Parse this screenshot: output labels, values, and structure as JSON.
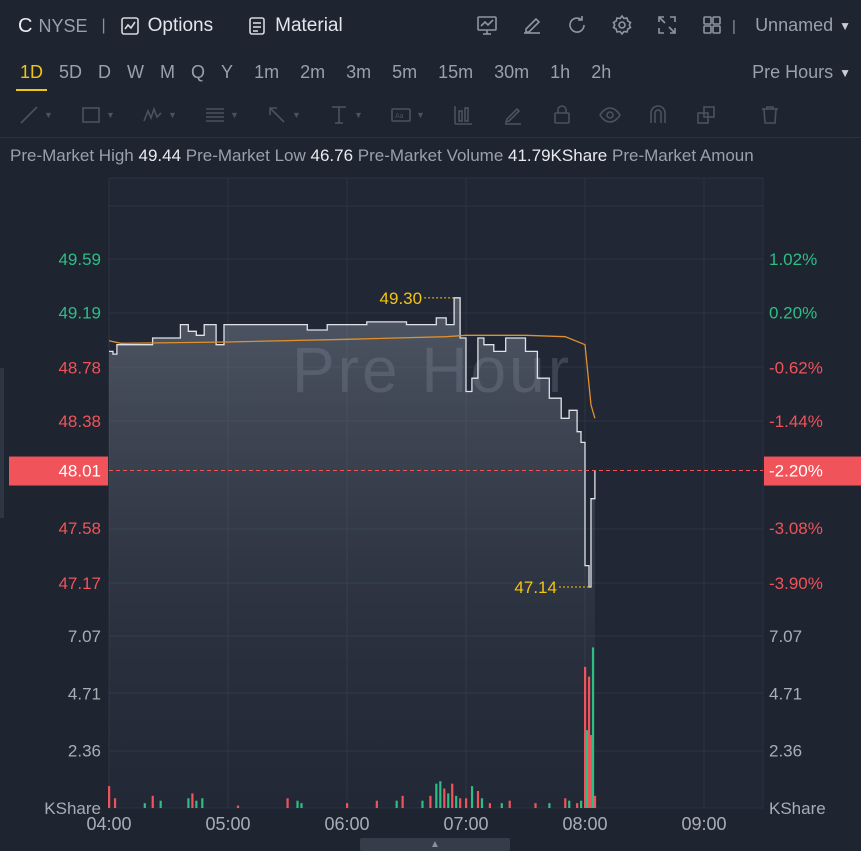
{
  "header": {
    "ticker": "C",
    "exchange": "NYSE",
    "options_label": "Options",
    "material_label": "Material",
    "layout_name": "Unnamed",
    "icons": [
      "chart-screen-icon",
      "edit-icon",
      "refresh-icon",
      "gear-icon",
      "fullscreen-icon",
      "grid-icon"
    ]
  },
  "intervals": {
    "items": [
      "1D",
      "5D",
      "D",
      "W",
      "M",
      "Q",
      "Y",
      "1m",
      "2m",
      "3m",
      "5m",
      "15m",
      "30m",
      "1h",
      "2h"
    ],
    "active": "1D",
    "session": "Pre Hours"
  },
  "tools": [
    "line-tool-icon",
    "rectangle-tool-icon",
    "pattern-tool-icon",
    "fib-tool-icon",
    "arrow-tool-icon",
    "text-tool-icon",
    "annotation-tool-icon",
    "bar-tool-icon",
    "pen-icon",
    "lock-icon",
    "eye-icon",
    "magnet-icon",
    "layers-icon",
    "trash-icon"
  ],
  "stats": {
    "high_label": "Pre-Market High",
    "high_value": "49.44",
    "low_label": "Pre-Market Low",
    "low_value": "46.76",
    "volume_label": "Pre-Market Volume",
    "volume_value": "41.79KShare",
    "amount_label": "Pre-Market Amoun"
  },
  "watermark": "Pre Hour",
  "colors": {
    "up": "#2ebd85",
    "down": "#f0535a",
    "avg_line": "#e0902c",
    "price_line": "#dfe2e7",
    "marker": "#f3c50f"
  },
  "chart_data": {
    "type": "line",
    "price_axis_left": [
      "49.59",
      "49.19",
      "48.78",
      "48.38",
      "48.01",
      "47.58",
      "47.17"
    ],
    "price_axis_left_values": [
      49.59,
      49.19,
      48.78,
      48.38,
      48.01,
      47.58,
      47.17
    ],
    "pct_axis_right": [
      "1.02%",
      "0.20%",
      "-0.62%",
      "-1.44%",
      "-2.20%",
      "-3.08%",
      "-3.90%"
    ],
    "current_price": "48.01",
    "current_pct": "-2.20%",
    "high_marker": "49.30",
    "low_marker": "47.14",
    "volume_axis": [
      "7.07",
      "4.71",
      "2.36"
    ],
    "volume_axis_values": [
      7.07,
      4.71,
      2.36
    ],
    "volume_unit": "KShare",
    "x_ticks": [
      "04:00",
      "05:00",
      "06:00",
      "07:00",
      "08:00",
      "09:00"
    ],
    "price_series": [
      [
        "04:00",
        48.9
      ],
      [
        "04:02",
        48.88
      ],
      [
        "04:04",
        48.95
      ],
      [
        "04:06",
        48.95
      ],
      [
        "04:20",
        48.95
      ],
      [
        "04:22",
        49.0
      ],
      [
        "04:34",
        49.0
      ],
      [
        "04:36",
        49.1
      ],
      [
        "04:40",
        49.05
      ],
      [
        "04:44",
        49.02
      ],
      [
        "04:48",
        49.1
      ],
      [
        "04:54",
        48.95
      ],
      [
        "04:58",
        49.1
      ],
      [
        "05:20",
        49.1
      ],
      [
        "05:40",
        49.06
      ],
      [
        "05:50",
        49.1
      ],
      [
        "06:10",
        49.12
      ],
      [
        "06:30",
        49.1
      ],
      [
        "06:45",
        49.15
      ],
      [
        "06:50",
        49.1
      ],
      [
        "06:54",
        49.3
      ],
      [
        "06:57",
        49.0
      ],
      [
        "07:00",
        48.6
      ],
      [
        "07:03",
        48.7
      ],
      [
        "07:06",
        49.0
      ],
      [
        "07:09",
        48.95
      ],
      [
        "07:14",
        48.9
      ],
      [
        "07:20",
        49.0
      ],
      [
        "07:30",
        48.9
      ],
      [
        "07:36",
        48.7
      ],
      [
        "07:42",
        48.55
      ],
      [
        "07:48",
        48.4
      ],
      [
        "07:52",
        48.46
      ],
      [
        "07:56",
        48.3
      ],
      [
        "07:58",
        48.22
      ],
      [
        "08:00",
        47.3
      ],
      [
        "08:02",
        47.14
      ],
      [
        "08:03",
        47.8
      ],
      [
        "08:05",
        48.01
      ]
    ],
    "avg_series": [
      [
        "04:00",
        48.98
      ],
      [
        "04:06",
        48.96
      ],
      [
        "05:00",
        48.97
      ],
      [
        "06:00",
        48.99
      ],
      [
        "06:50",
        49.01
      ],
      [
        "07:00",
        49.02
      ],
      [
        "07:30",
        49.02
      ],
      [
        "07:50",
        49.01
      ],
      [
        "08:00",
        48.95
      ],
      [
        "08:03",
        48.5
      ],
      [
        "08:05",
        48.4
      ]
    ],
    "volume_bars": [
      {
        "t": "04:00",
        "v": 0.9,
        "up": false
      },
      {
        "t": "04:03",
        "v": 0.4,
        "up": false
      },
      {
        "t": "04:18",
        "v": 0.2,
        "up": true
      },
      {
        "t": "04:22",
        "v": 0.5,
        "up": false
      },
      {
        "t": "04:26",
        "v": 0.3,
        "up": true
      },
      {
        "t": "04:40",
        "v": 0.4,
        "up": true
      },
      {
        "t": "04:42",
        "v": 0.6,
        "up": false
      },
      {
        "t": "04:44",
        "v": 0.3,
        "up": true
      },
      {
        "t": "04:47",
        "v": 0.4,
        "up": true
      },
      {
        "t": "05:05",
        "v": 0.1,
        "up": false
      },
      {
        "t": "05:30",
        "v": 0.4,
        "up": false
      },
      {
        "t": "05:35",
        "v": 0.3,
        "up": true
      },
      {
        "t": "05:37",
        "v": 0.2,
        "up": true
      },
      {
        "t": "06:00",
        "v": 0.2,
        "up": false
      },
      {
        "t": "06:15",
        "v": 0.3,
        "up": false
      },
      {
        "t": "06:25",
        "v": 0.3,
        "up": true
      },
      {
        "t": "06:28",
        "v": 0.5,
        "up": false
      },
      {
        "t": "06:38",
        "v": 0.3,
        "up": true
      },
      {
        "t": "06:42",
        "v": 0.5,
        "up": false
      },
      {
        "t": "06:45",
        "v": 1.0,
        "up": true
      },
      {
        "t": "06:47",
        "v": 1.1,
        "up": true
      },
      {
        "t": "06:49",
        "v": 0.8,
        "up": false
      },
      {
        "t": "06:51",
        "v": 0.6,
        "up": true
      },
      {
        "t": "06:53",
        "v": 1.0,
        "up": false
      },
      {
        "t": "06:55",
        "v": 0.5,
        "up": true
      },
      {
        "t": "06:57",
        "v": 0.4,
        "up": false
      },
      {
        "t": "07:00",
        "v": 0.4,
        "up": false
      },
      {
        "t": "07:03",
        "v": 0.9,
        "up": true
      },
      {
        "t": "07:06",
        "v": 0.7,
        "up": false
      },
      {
        "t": "07:08",
        "v": 0.4,
        "up": true
      },
      {
        "t": "07:12",
        "v": 0.2,
        "up": false
      },
      {
        "t": "07:18",
        "v": 0.2,
        "up": true
      },
      {
        "t": "07:22",
        "v": 0.3,
        "up": false
      },
      {
        "t": "07:35",
        "v": 0.2,
        "up": false
      },
      {
        "t": "07:42",
        "v": 0.2,
        "up": true
      },
      {
        "t": "07:50",
        "v": 0.4,
        "up": false
      },
      {
        "t": "07:52",
        "v": 0.3,
        "up": true
      },
      {
        "t": "07:56",
        "v": 0.2,
        "up": false
      },
      {
        "t": "07:58",
        "v": 0.3,
        "up": true
      },
      {
        "t": "08:00",
        "v": 5.8,
        "up": false
      },
      {
        "t": "08:01",
        "v": 3.2,
        "up": true
      },
      {
        "t": "08:02",
        "v": 5.4,
        "up": false
      },
      {
        "t": "08:03",
        "v": 3.0,
        "up": false
      },
      {
        "t": "08:04",
        "v": 6.6,
        "up": true
      },
      {
        "t": "08:05",
        "v": 0.5,
        "up": false
      }
    ]
  }
}
